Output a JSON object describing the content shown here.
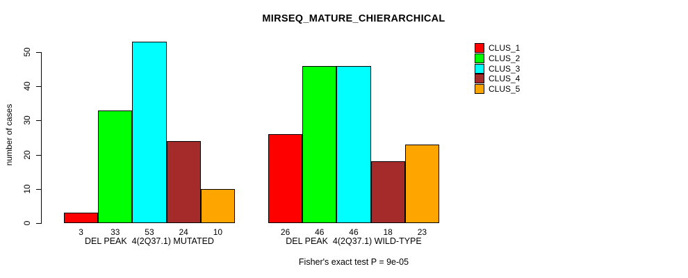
{
  "chart_data": {
    "type": "bar",
    "title": "MIRSEQ_MATURE_CHIERARCHICAL",
    "ylabel": "number of cases",
    "xlabel": "",
    "ylim": [
      0,
      53
    ],
    "yticks": [
      0,
      10,
      20,
      30,
      40,
      50
    ],
    "grid": false,
    "legend_position": "top-right",
    "bar_value_labels": true,
    "categories": [
      "DEL PEAK  4(2Q37.1) MUTATED",
      "DEL PEAK  4(2Q37.1) WILD-TYPE"
    ],
    "series": [
      {
        "name": "CLUS_1",
        "color": "#FF0000",
        "values": [
          3,
          26
        ]
      },
      {
        "name": "CLUS_2",
        "color": "#00FF00",
        "values": [
          33,
          46
        ]
      },
      {
        "name": "CLUS_3",
        "color": "#00FFFF",
        "values": [
          53,
          46
        ]
      },
      {
        "name": "CLUS_4",
        "color": "#A52A2A",
        "values": [
          24,
          18
        ]
      },
      {
        "name": "CLUS_5",
        "color": "#FFA500",
        "values": [
          10,
          23
        ]
      }
    ],
    "annotation": "Fisher's exact test P = 9e-05"
  },
  "page": {
    "background_color": "#FFFFFF",
    "axis_color": "#000000"
  }
}
